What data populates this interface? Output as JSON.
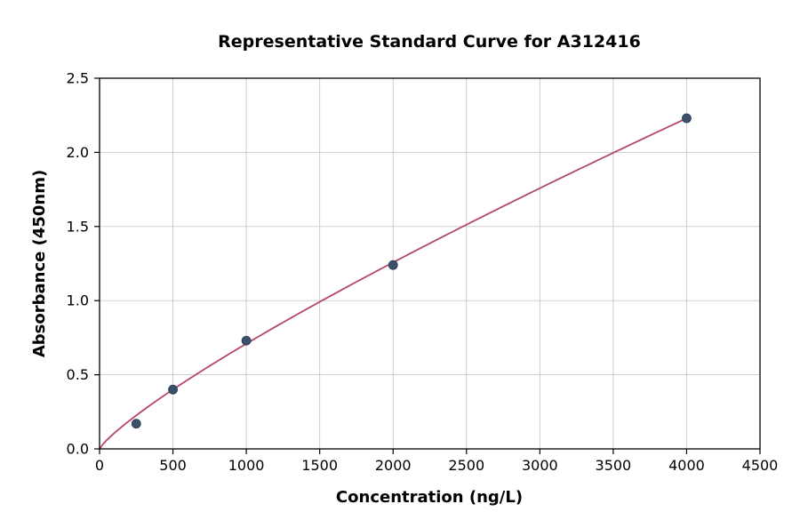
{
  "chart_data": {
    "type": "scatter",
    "title": "Representative Standard Curve for A312416",
    "xlabel": "Concentration (ng/L)",
    "ylabel": "Absorbance (450nm)",
    "xlim": [
      0,
      4500
    ],
    "ylim": [
      0,
      2.5
    ],
    "grid": true,
    "legend": "none",
    "x_ticks": {
      "values": [
        0,
        500,
        1000,
        1500,
        2000,
        2500,
        3000,
        3500,
        4000,
        4500
      ],
      "labels": [
        "0",
        "500",
        "1000",
        "1500",
        "2000",
        "2500",
        "3000",
        "3500",
        "4000",
        "4500"
      ]
    },
    "y_ticks": {
      "values": [
        0.0,
        0.5,
        1.0,
        1.5,
        2.0,
        2.5
      ],
      "labels": [
        "0.0",
        "0.5",
        "1.0",
        "1.5",
        "2.0",
        "2.5"
      ]
    },
    "points": [
      {
        "x": 250,
        "y": 0.17
      },
      {
        "x": 500,
        "y": 0.4
      },
      {
        "x": 1000,
        "y": 0.73
      },
      {
        "x": 2000,
        "y": 1.24
      },
      {
        "x": 4000,
        "y": 2.23
      }
    ],
    "fit_curve": {
      "type": "power",
      "a": 0.00236,
      "b": 0.826,
      "x_start": 0,
      "x_end": 4000
    },
    "colors": {
      "point": "#3a506b",
      "point_edge": "#27374b",
      "curve": "#b5476b",
      "grid": "#c9c9c9",
      "axis": "#000000",
      "background": "#ffffff"
    }
  }
}
